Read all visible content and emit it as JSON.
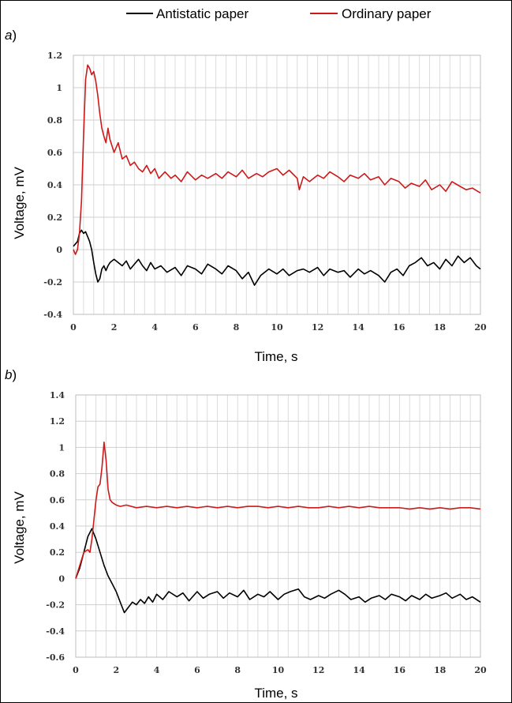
{
  "legend": {
    "items": [
      {
        "label": "Antistatic paper",
        "color": "#000000"
      },
      {
        "label": "Ordinary paper",
        "color": "#cc1a1a"
      }
    ]
  },
  "chart_data": [
    {
      "type": "line",
      "panel_label": "a",
      "xlabel": "Time, s",
      "ylabel": "Voltage, mV",
      "xlim": [
        0,
        20
      ],
      "ylim": [
        -0.4,
        1.2
      ],
      "x_ticks": [
        0,
        2,
        4,
        6,
        8,
        10,
        12,
        14,
        16,
        18,
        20
      ],
      "y_ticks": [
        -0.4,
        -0.2,
        0,
        0.2,
        0.4,
        0.6,
        0.8,
        1,
        1.2
      ],
      "y_tick_labels": [
        "-0.4",
        "-0.2",
        "0",
        "0.2",
        "0.4",
        "0.6",
        "0.8",
        "1",
        "1.2"
      ],
      "grid": true,
      "series": [
        {
          "name": "Antistatic paper",
          "color": "#000000",
          "x": [
            0,
            0.2,
            0.3,
            0.4,
            0.5,
            0.6,
            0.7,
            0.8,
            0.9,
            1.0,
            1.1,
            1.2,
            1.3,
            1.4,
            1.5,
            1.6,
            1.7,
            1.8,
            2.0,
            2.2,
            2.4,
            2.6,
            2.8,
            3.0,
            3.2,
            3.4,
            3.6,
            3.8,
            4.0,
            4.3,
            4.6,
            5.0,
            5.3,
            5.6,
            6.0,
            6.3,
            6.6,
            7.0,
            7.3,
            7.6,
            8.0,
            8.3,
            8.6,
            8.9,
            9.2,
            9.6,
            10.0,
            10.3,
            10.6,
            11.0,
            11.3,
            11.6,
            12.0,
            12.3,
            12.6,
            13.0,
            13.3,
            13.6,
            14.0,
            14.3,
            14.6,
            15.0,
            15.3,
            15.6,
            15.9,
            16.2,
            16.5,
            16.8,
            17.1,
            17.4,
            17.7,
            18.0,
            18.3,
            18.6,
            18.9,
            19.2,
            19.5,
            19.8,
            20.0
          ],
          "y": [
            0.02,
            0.05,
            0.1,
            0.12,
            0.1,
            0.11,
            0.08,
            0.05,
            0.0,
            -0.08,
            -0.15,
            -0.2,
            -0.18,
            -0.12,
            -0.1,
            -0.13,
            -0.1,
            -0.08,
            -0.06,
            -0.08,
            -0.1,
            -0.07,
            -0.12,
            -0.09,
            -0.06,
            -0.1,
            -0.13,
            -0.08,
            -0.12,
            -0.1,
            -0.14,
            -0.11,
            -0.16,
            -0.1,
            -0.12,
            -0.15,
            -0.09,
            -0.12,
            -0.15,
            -0.1,
            -0.13,
            -0.18,
            -0.14,
            -0.22,
            -0.16,
            -0.12,
            -0.15,
            -0.12,
            -0.16,
            -0.13,
            -0.12,
            -0.14,
            -0.11,
            -0.16,
            -0.12,
            -0.14,
            -0.13,
            -0.17,
            -0.12,
            -0.15,
            -0.13,
            -0.16,
            -0.2,
            -0.14,
            -0.12,
            -0.16,
            -0.1,
            -0.08,
            -0.05,
            -0.1,
            -0.08,
            -0.12,
            -0.06,
            -0.1,
            -0.04,
            -0.08,
            -0.05,
            -0.1,
            -0.12
          ]
        },
        {
          "name": "Ordinary paper",
          "color": "#cc1a1a",
          "x": [
            0,
            0.1,
            0.2,
            0.3,
            0.4,
            0.5,
            0.6,
            0.7,
            0.8,
            0.9,
            1.0,
            1.1,
            1.2,
            1.3,
            1.4,
            1.5,
            1.6,
            1.7,
            1.8,
            1.9,
            2.0,
            2.2,
            2.4,
            2.6,
            2.8,
            3.0,
            3.2,
            3.4,
            3.6,
            3.8,
            4.0,
            4.2,
            4.5,
            4.8,
            5.0,
            5.3,
            5.6,
            6.0,
            6.3,
            6.6,
            7.0,
            7.3,
            7.6,
            8.0,
            8.3,
            8.6,
            9.0,
            9.3,
            9.6,
            10.0,
            10.3,
            10.6,
            11.0,
            11.1,
            11.3,
            11.6,
            12.0,
            12.3,
            12.6,
            13.0,
            13.3,
            13.6,
            14.0,
            14.3,
            14.6,
            15.0,
            15.3,
            15.6,
            16.0,
            16.3,
            16.6,
            17.0,
            17.3,
            17.6,
            18.0,
            18.3,
            18.6,
            19.0,
            19.3,
            19.6,
            20.0
          ],
          "y": [
            0.0,
            -0.03,
            0.0,
            0.1,
            0.3,
            0.7,
            1.05,
            1.14,
            1.12,
            1.08,
            1.1,
            1.04,
            0.95,
            0.84,
            0.75,
            0.7,
            0.66,
            0.75,
            0.68,
            0.64,
            0.6,
            0.66,
            0.56,
            0.58,
            0.52,
            0.54,
            0.5,
            0.48,
            0.52,
            0.47,
            0.5,
            0.44,
            0.48,
            0.44,
            0.46,
            0.42,
            0.48,
            0.43,
            0.46,
            0.44,
            0.47,
            0.44,
            0.48,
            0.45,
            0.49,
            0.44,
            0.47,
            0.45,
            0.48,
            0.5,
            0.46,
            0.49,
            0.44,
            0.37,
            0.45,
            0.42,
            0.46,
            0.44,
            0.48,
            0.45,
            0.42,
            0.46,
            0.44,
            0.47,
            0.43,
            0.45,
            0.4,
            0.44,
            0.42,
            0.38,
            0.41,
            0.39,
            0.43,
            0.37,
            0.4,
            0.36,
            0.42,
            0.39,
            0.37,
            0.38,
            0.35
          ]
        }
      ]
    },
    {
      "type": "line",
      "panel_label": "b",
      "xlabel": "Time, s",
      "ylabel": "Voltage, mV",
      "xlim": [
        0,
        20
      ],
      "ylim": [
        -0.6,
        1.4
      ],
      "x_ticks": [
        0,
        2,
        4,
        6,
        8,
        10,
        12,
        14,
        16,
        18,
        20
      ],
      "y_ticks": [
        -0.6,
        -0.4,
        -0.2,
        0,
        0.2,
        0.4,
        0.6,
        0.8,
        1,
        1.2,
        1.4
      ],
      "y_tick_labels": [
        "-0.6",
        "-0.4",
        "-0.2",
        "0",
        "0.2",
        "0.4",
        "0.6",
        "0.8",
        "1",
        "1.2",
        "1.4"
      ],
      "grid": true,
      "series": [
        {
          "name": "Antistatic paper",
          "color": "#000000",
          "x": [
            0,
            0.2,
            0.4,
            0.6,
            0.8,
            1.0,
            1.2,
            1.4,
            1.6,
            1.8,
            2.0,
            2.2,
            2.4,
            2.6,
            2.8,
            3.0,
            3.2,
            3.4,
            3.6,
            3.8,
            4.0,
            4.3,
            4.6,
            5.0,
            5.3,
            5.6,
            6.0,
            6.3,
            6.6,
            7.0,
            7.3,
            7.6,
            8.0,
            8.3,
            8.6,
            9.0,
            9.3,
            9.6,
            10.0,
            10.3,
            10.6,
            11.0,
            11.3,
            11.6,
            12.0,
            12.3,
            12.6,
            13.0,
            13.3,
            13.6,
            14.0,
            14.3,
            14.6,
            15.0,
            15.3,
            15.6,
            16.0,
            16.3,
            16.6,
            17.0,
            17.3,
            17.6,
            18.0,
            18.3,
            18.6,
            19.0,
            19.3,
            19.6,
            20.0
          ],
          "y": [
            0.0,
            0.08,
            0.2,
            0.32,
            0.38,
            0.3,
            0.2,
            0.1,
            0.02,
            -0.04,
            -0.1,
            -0.18,
            -0.26,
            -0.22,
            -0.18,
            -0.2,
            -0.16,
            -0.19,
            -0.14,
            -0.18,
            -0.12,
            -0.16,
            -0.1,
            -0.14,
            -0.11,
            -0.17,
            -0.1,
            -0.15,
            -0.12,
            -0.1,
            -0.15,
            -0.11,
            -0.14,
            -0.09,
            -0.16,
            -0.12,
            -0.14,
            -0.1,
            -0.16,
            -0.12,
            -0.1,
            -0.08,
            -0.14,
            -0.16,
            -0.13,
            -0.15,
            -0.12,
            -0.09,
            -0.12,
            -0.16,
            -0.14,
            -0.18,
            -0.15,
            -0.13,
            -0.16,
            -0.12,
            -0.14,
            -0.17,
            -0.13,
            -0.16,
            -0.12,
            -0.15,
            -0.13,
            -0.11,
            -0.15,
            -0.12,
            -0.16,
            -0.14,
            -0.18
          ]
        },
        {
          "name": "Ordinary paper",
          "color": "#cc1a1a",
          "x": [
            0,
            0.2,
            0.4,
            0.6,
            0.7,
            0.8,
            0.9,
            1.0,
            1.1,
            1.2,
            1.3,
            1.4,
            1.5,
            1.6,
            1.7,
            1.8,
            2.0,
            2.2,
            2.5,
            3.0,
            3.5,
            4.0,
            4.5,
            5.0,
            5.5,
            6.0,
            6.5,
            7.0,
            7.5,
            8.0,
            8.5,
            9.0,
            9.5,
            10.0,
            10.5,
            11.0,
            11.5,
            12.0,
            12.5,
            13.0,
            13.5,
            14.0,
            14.5,
            15.0,
            15.5,
            16.0,
            16.5,
            17.0,
            17.5,
            18.0,
            18.5,
            19.0,
            19.5,
            20.0
          ],
          "y": [
            0.0,
            0.1,
            0.2,
            0.22,
            0.2,
            0.3,
            0.45,
            0.6,
            0.7,
            0.72,
            0.85,
            1.04,
            0.9,
            0.68,
            0.6,
            0.58,
            0.56,
            0.55,
            0.56,
            0.54,
            0.55,
            0.54,
            0.55,
            0.54,
            0.55,
            0.54,
            0.55,
            0.54,
            0.55,
            0.54,
            0.55,
            0.55,
            0.54,
            0.55,
            0.54,
            0.55,
            0.54,
            0.54,
            0.55,
            0.54,
            0.55,
            0.54,
            0.55,
            0.54,
            0.54,
            0.54,
            0.53,
            0.54,
            0.53,
            0.54,
            0.53,
            0.54,
            0.54,
            0.53
          ]
        }
      ]
    }
  ]
}
